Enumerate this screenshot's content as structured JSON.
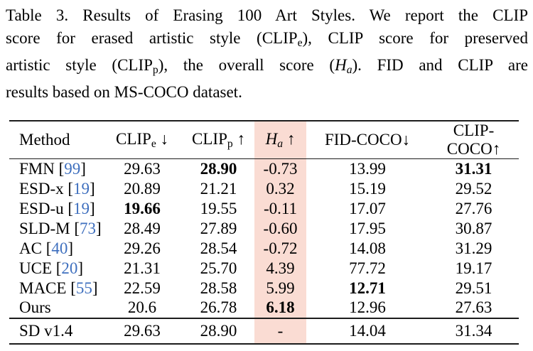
{
  "colors": {
    "background": "#ffffff",
    "text": "#000000",
    "highlight": "#fadcd3",
    "citation_link": "#3e6fbe",
    "rule": "#1c1c1c"
  },
  "caption": {
    "lines": [
      [
        {
          "text": "Table 3. Results of Erasing 100 Art Styles. We report the CLIP"
        }
      ],
      [
        {
          "text": "score for erased artistic style (CLIP"
        },
        {
          "text": "e",
          "style": "sub"
        },
        {
          "text": "), CLIP score for preserved"
        }
      ],
      [
        {
          "text": "artistic style (CLIP"
        },
        {
          "text": "p",
          "style": "sub"
        },
        {
          "text": "), the overall score ("
        },
        {
          "text": "H",
          "style": "italic"
        },
        {
          "text": "a",
          "style": "italic-sub"
        },
        {
          "text": "). FID and CLIP are"
        }
      ],
      [
        {
          "text": "results based on MS-COCO dataset."
        }
      ]
    ]
  },
  "table": {
    "columns": [
      {
        "key": "method",
        "align": "left",
        "highlight": false,
        "label_segments": [
          {
            "text": "Method"
          }
        ]
      },
      {
        "key": "clip-e",
        "align": "center",
        "highlight": false,
        "label_segments": [
          {
            "text": "CLIP"
          },
          {
            "text": "e",
            "style": "sub"
          },
          {
            "text": " ↓"
          }
        ]
      },
      {
        "key": "clip-p",
        "align": "center",
        "highlight": false,
        "label_segments": [
          {
            "text": "CLIP"
          },
          {
            "text": "p",
            "style": "sub"
          },
          {
            "text": " ↑"
          }
        ]
      },
      {
        "key": "ha",
        "align": "center",
        "highlight": true,
        "label_segments": [
          {
            "text": "H",
            "style": "italic"
          },
          {
            "text": "a",
            "style": "italic-sub"
          },
          {
            "text": " ↑"
          }
        ]
      },
      {
        "key": "fid-coco",
        "align": "center",
        "highlight": false,
        "label_segments": [
          {
            "text": "FID-COCO↓"
          }
        ]
      },
      {
        "key": "clip-coco",
        "align": "center",
        "highlight": false,
        "label_segments": [
          {
            "text": "CLIP-COCO↑"
          }
        ]
      }
    ],
    "body_rows": [
      {
        "method": {
          "name": "FMN",
          "cite": "99"
        },
        "values": [
          {
            "v": "29.63"
          },
          {
            "v": "28.90",
            "bold": true
          },
          {
            "v": "-0.73"
          },
          {
            "v": "13.99"
          },
          {
            "v": "31.31",
            "bold": true
          }
        ]
      },
      {
        "method": {
          "name": "ESD-x",
          "cite": "19"
        },
        "values": [
          {
            "v": "20.89"
          },
          {
            "v": "21.21"
          },
          {
            "v": "0.32"
          },
          {
            "v": "15.19"
          },
          {
            "v": "29.52"
          }
        ]
      },
      {
        "method": {
          "name": "ESD-u",
          "cite": "19"
        },
        "values": [
          {
            "v": "19.66",
            "bold": true
          },
          {
            "v": "19.55"
          },
          {
            "v": "-0.11"
          },
          {
            "v": "17.07"
          },
          {
            "v": "27.76"
          }
        ]
      },
      {
        "method": {
          "name": "SLD-M",
          "cite": "73"
        },
        "values": [
          {
            "v": "28.49"
          },
          {
            "v": "27.89"
          },
          {
            "v": "-0.60"
          },
          {
            "v": "17.95"
          },
          {
            "v": "30.87"
          }
        ]
      },
      {
        "method": {
          "name": "AC",
          "cite": "40"
        },
        "values": [
          {
            "v": "29.26"
          },
          {
            "v": "28.54"
          },
          {
            "v": "-0.72"
          },
          {
            "v": "14.08"
          },
          {
            "v": "31.29"
          }
        ]
      },
      {
        "method": {
          "name": "UCE",
          "cite": "20"
        },
        "values": [
          {
            "v": "21.31"
          },
          {
            "v": "25.70"
          },
          {
            "v": "4.39"
          },
          {
            "v": "77.72"
          },
          {
            "v": "19.17"
          }
        ]
      },
      {
        "method": {
          "name": "MACE",
          "cite": "55"
        },
        "values": [
          {
            "v": "22.59"
          },
          {
            "v": "28.58"
          },
          {
            "v": "5.99"
          },
          {
            "v": "12.71",
            "bold": true
          },
          {
            "v": "29.51"
          }
        ]
      },
      {
        "method": {
          "name": "Ours"
        },
        "values": [
          {
            "v": "20.6"
          },
          {
            "v": "26.78"
          },
          {
            "v": "6.18",
            "bold": true
          },
          {
            "v": "12.96"
          },
          {
            "v": "27.63"
          }
        ]
      }
    ],
    "footer_rows": [
      {
        "method": {
          "name": "SD v1.4"
        },
        "values": [
          {
            "v": "29.63"
          },
          {
            "v": "28.90"
          },
          {
            "v": "-"
          },
          {
            "v": "14.04"
          },
          {
            "v": "31.34"
          }
        ]
      }
    ]
  }
}
